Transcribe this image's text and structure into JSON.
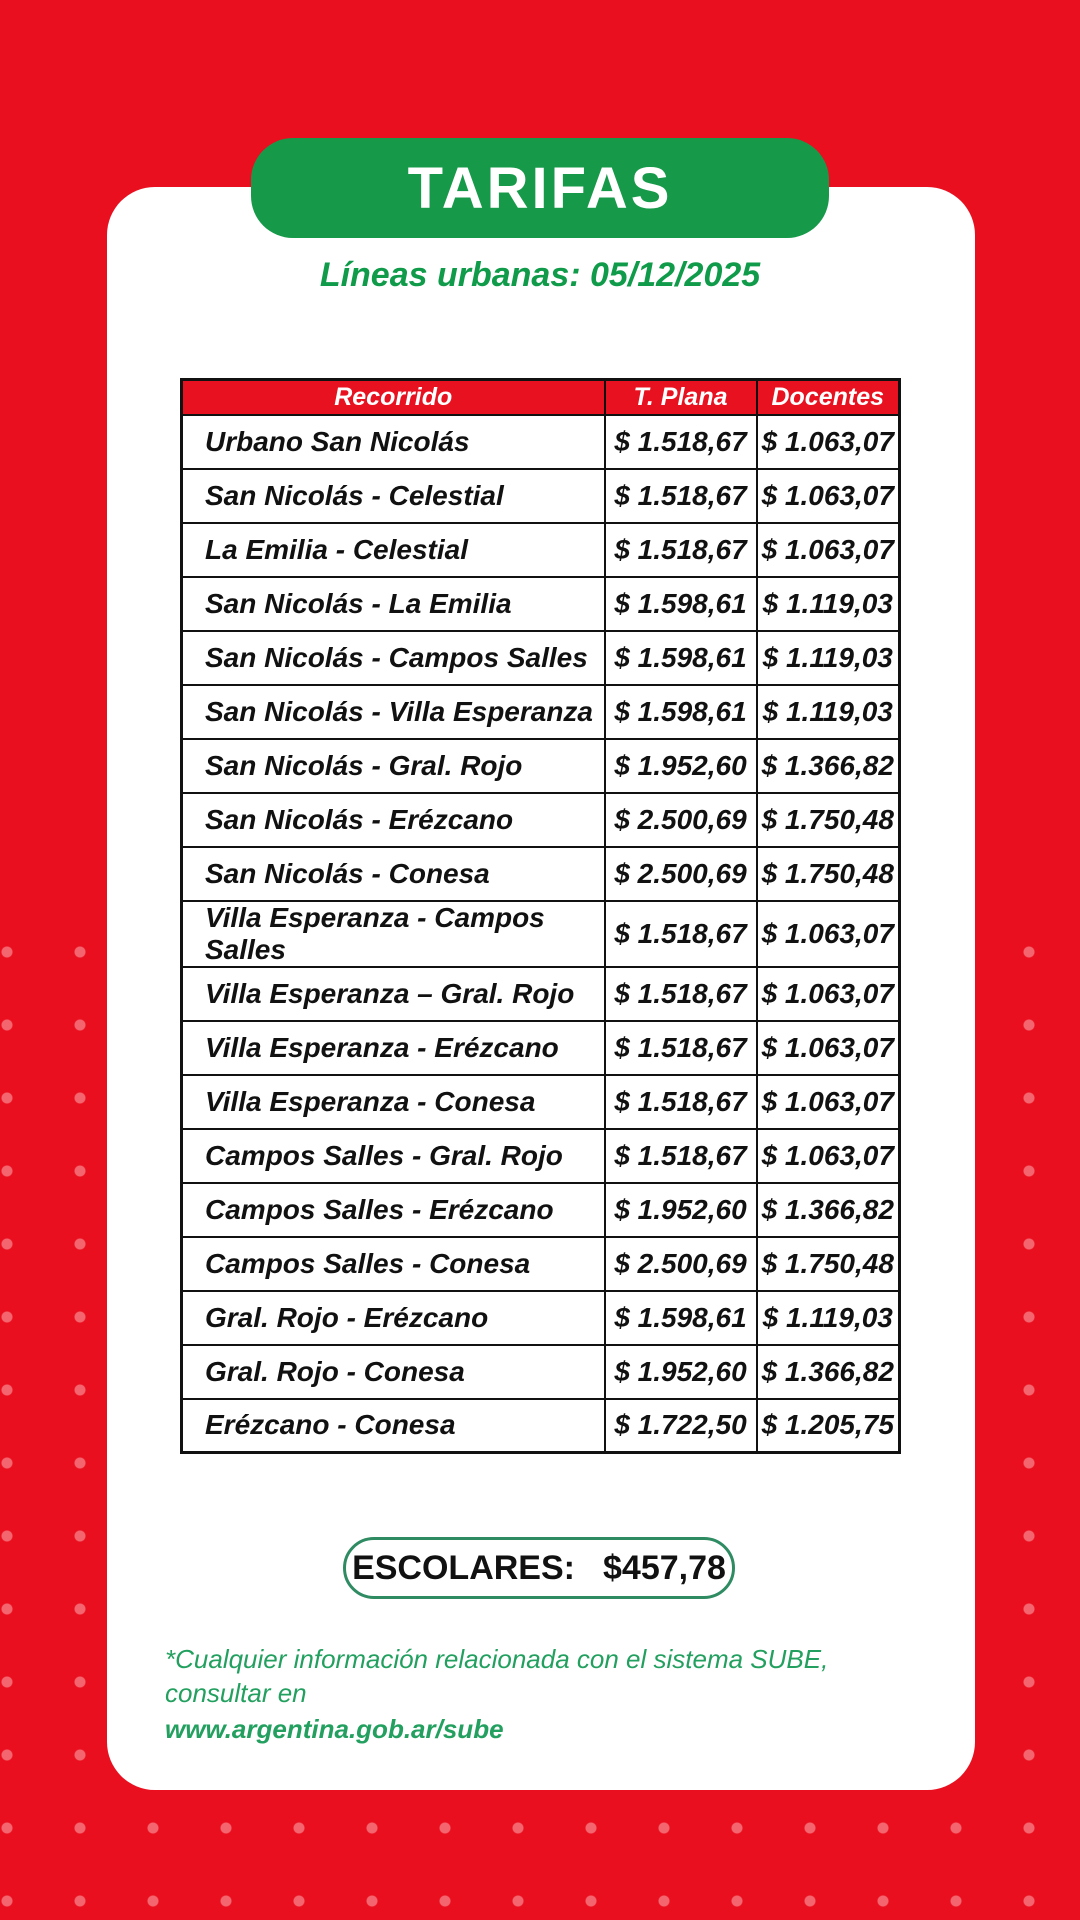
{
  "header": {
    "title": "TARIFAS",
    "subtitle": "Líneas urbanas: 05/12/2025"
  },
  "table": {
    "columns": [
      "Recorrido",
      "T. Plana",
      "Docentes"
    ],
    "rows": [
      {
        "route": "Urbano San Nicolás",
        "plana": "$ 1.518,67",
        "docentes": "$ 1.063,07"
      },
      {
        "route": "San Nicolás - Celestial",
        "plana": "$ 1.518,67",
        "docentes": "$ 1.063,07"
      },
      {
        "route": "La Emilia - Celestial",
        "plana": "$ 1.518,67",
        "docentes": "$ 1.063,07"
      },
      {
        "route": "San Nicolás - La Emilia",
        "plana": "$ 1.598,61",
        "docentes": "$ 1.119,03"
      },
      {
        "route": "San Nicolás - Campos Salles",
        "plana": "$ 1.598,61",
        "docentes": "$ 1.119,03"
      },
      {
        "route": "San Nicolás - Villa Esperanza",
        "plana": "$ 1.598,61",
        "docentes": "$ 1.119,03"
      },
      {
        "route": "San Nicolás - Gral. Rojo",
        "plana": "$ 1.952,60",
        "docentes": "$ 1.366,82"
      },
      {
        "route": "San Nicolás - Erézcano",
        "plana": "$ 2.500,69",
        "docentes": "$ 1.750,48"
      },
      {
        "route": "San Nicolás - Conesa",
        "plana": "$ 2.500,69",
        "docentes": "$ 1.750,48"
      },
      {
        "route": "Villa Esperanza - Campos Salles",
        "plana": "$ 1.518,67",
        "docentes": "$ 1.063,07"
      },
      {
        "route": "Villa Esperanza – Gral. Rojo",
        "plana": "$ 1.518,67",
        "docentes": "$ 1.063,07"
      },
      {
        "route": "Villa Esperanza - Erézcano",
        "plana": "$ 1.518,67",
        "docentes": "$ 1.063,07"
      },
      {
        "route": "Villa Esperanza - Conesa",
        "plana": "$ 1.518,67",
        "docentes": "$ 1.063,07"
      },
      {
        "route": "Campos Salles - Gral. Rojo",
        "plana": "$ 1.518,67",
        "docentes": "$ 1.063,07"
      },
      {
        "route": "Campos Salles - Erézcano",
        "plana": "$ 1.952,60",
        "docentes": "$ 1.366,82"
      },
      {
        "route": "Campos Salles - Conesa",
        "plana": "$ 2.500,69",
        "docentes": "$ 1.750,48"
      },
      {
        "route": "Gral. Rojo - Erézcano",
        "plana": "$ 1.598,61",
        "docentes": "$ 1.119,03"
      },
      {
        "route": "Gral. Rojo - Conesa",
        "plana": "$ 1.952,60",
        "docentes": "$ 1.366,82"
      },
      {
        "route": "Erézcano - Conesa",
        "plana": "$ 1.722,50",
        "docentes": "$ 1.205,75"
      }
    ]
  },
  "escolares": {
    "label": "ESCOLARES:",
    "value": "$457,78"
  },
  "footer": {
    "line1": "*Cualquier información relacionada con el sistema SUBE, consultar en",
    "line2": "www.argentina.gob.ar/sube"
  },
  "colors": {
    "bg_red": "#e90f1f",
    "dot_red": "#f4666f",
    "brand_green": "#17994a",
    "text_green": "#0f9b49",
    "footer_green": "#23a05f",
    "header_red": "#e8111f",
    "box_border_green": "#2e8b62"
  }
}
